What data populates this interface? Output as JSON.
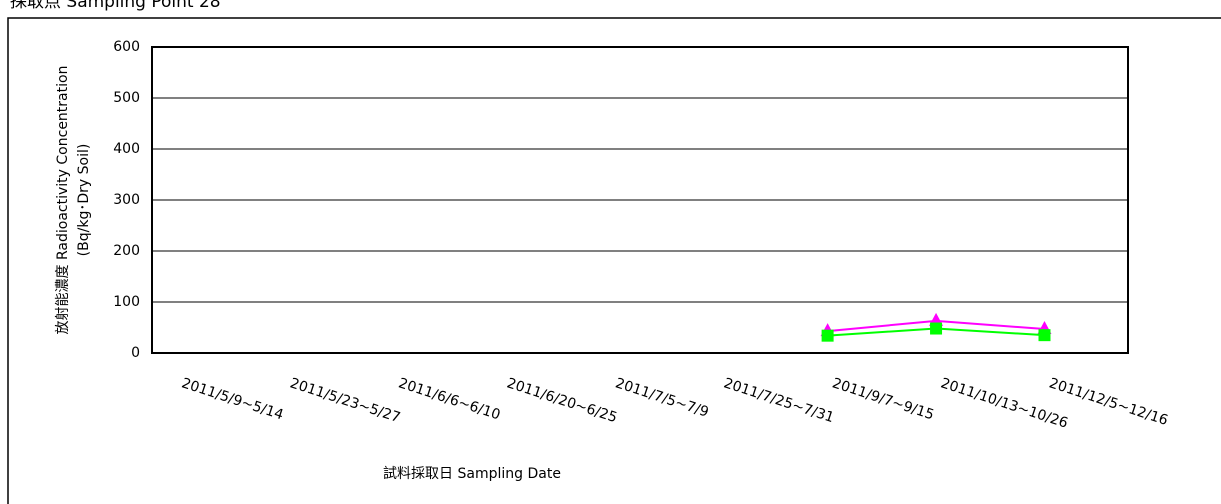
{
  "chart_data": {
    "type": "line",
    "title": "採取点 Sampling Point 28",
    "y_label": [
      "放射能濃度 Radioactivity Concentration",
      "(Bq/kg･Dry Soil)"
    ],
    "x_label": "試料採取日 Sampling Date",
    "categories": [
      "2011/5/9~5/14",
      "2011/5/23~5/27",
      "2011/6/6~6/10",
      "2011/6/20~6/25",
      "2011/7/5~7/9",
      "2011/7/25~7/31",
      "2011/9/7~9/15",
      "2011/10/13~10/26",
      "2011/12/5~12/16"
    ],
    "series": [
      {
        "color": "#ff00ff",
        "marker": "triangle",
        "values": [
          null,
          null,
          null,
          null,
          null,
          null,
          43,
          63,
          47
        ]
      },
      {
        "color": "#00ff00",
        "marker": "square",
        "values": [
          null,
          null,
          null,
          null,
          null,
          null,
          34,
          48,
          35
        ]
      }
    ],
    "ylim": [
      0,
      600
    ],
    "yticks": [
      0,
      100,
      200,
      300,
      400,
      500,
      600
    ],
    "grid": true
  }
}
